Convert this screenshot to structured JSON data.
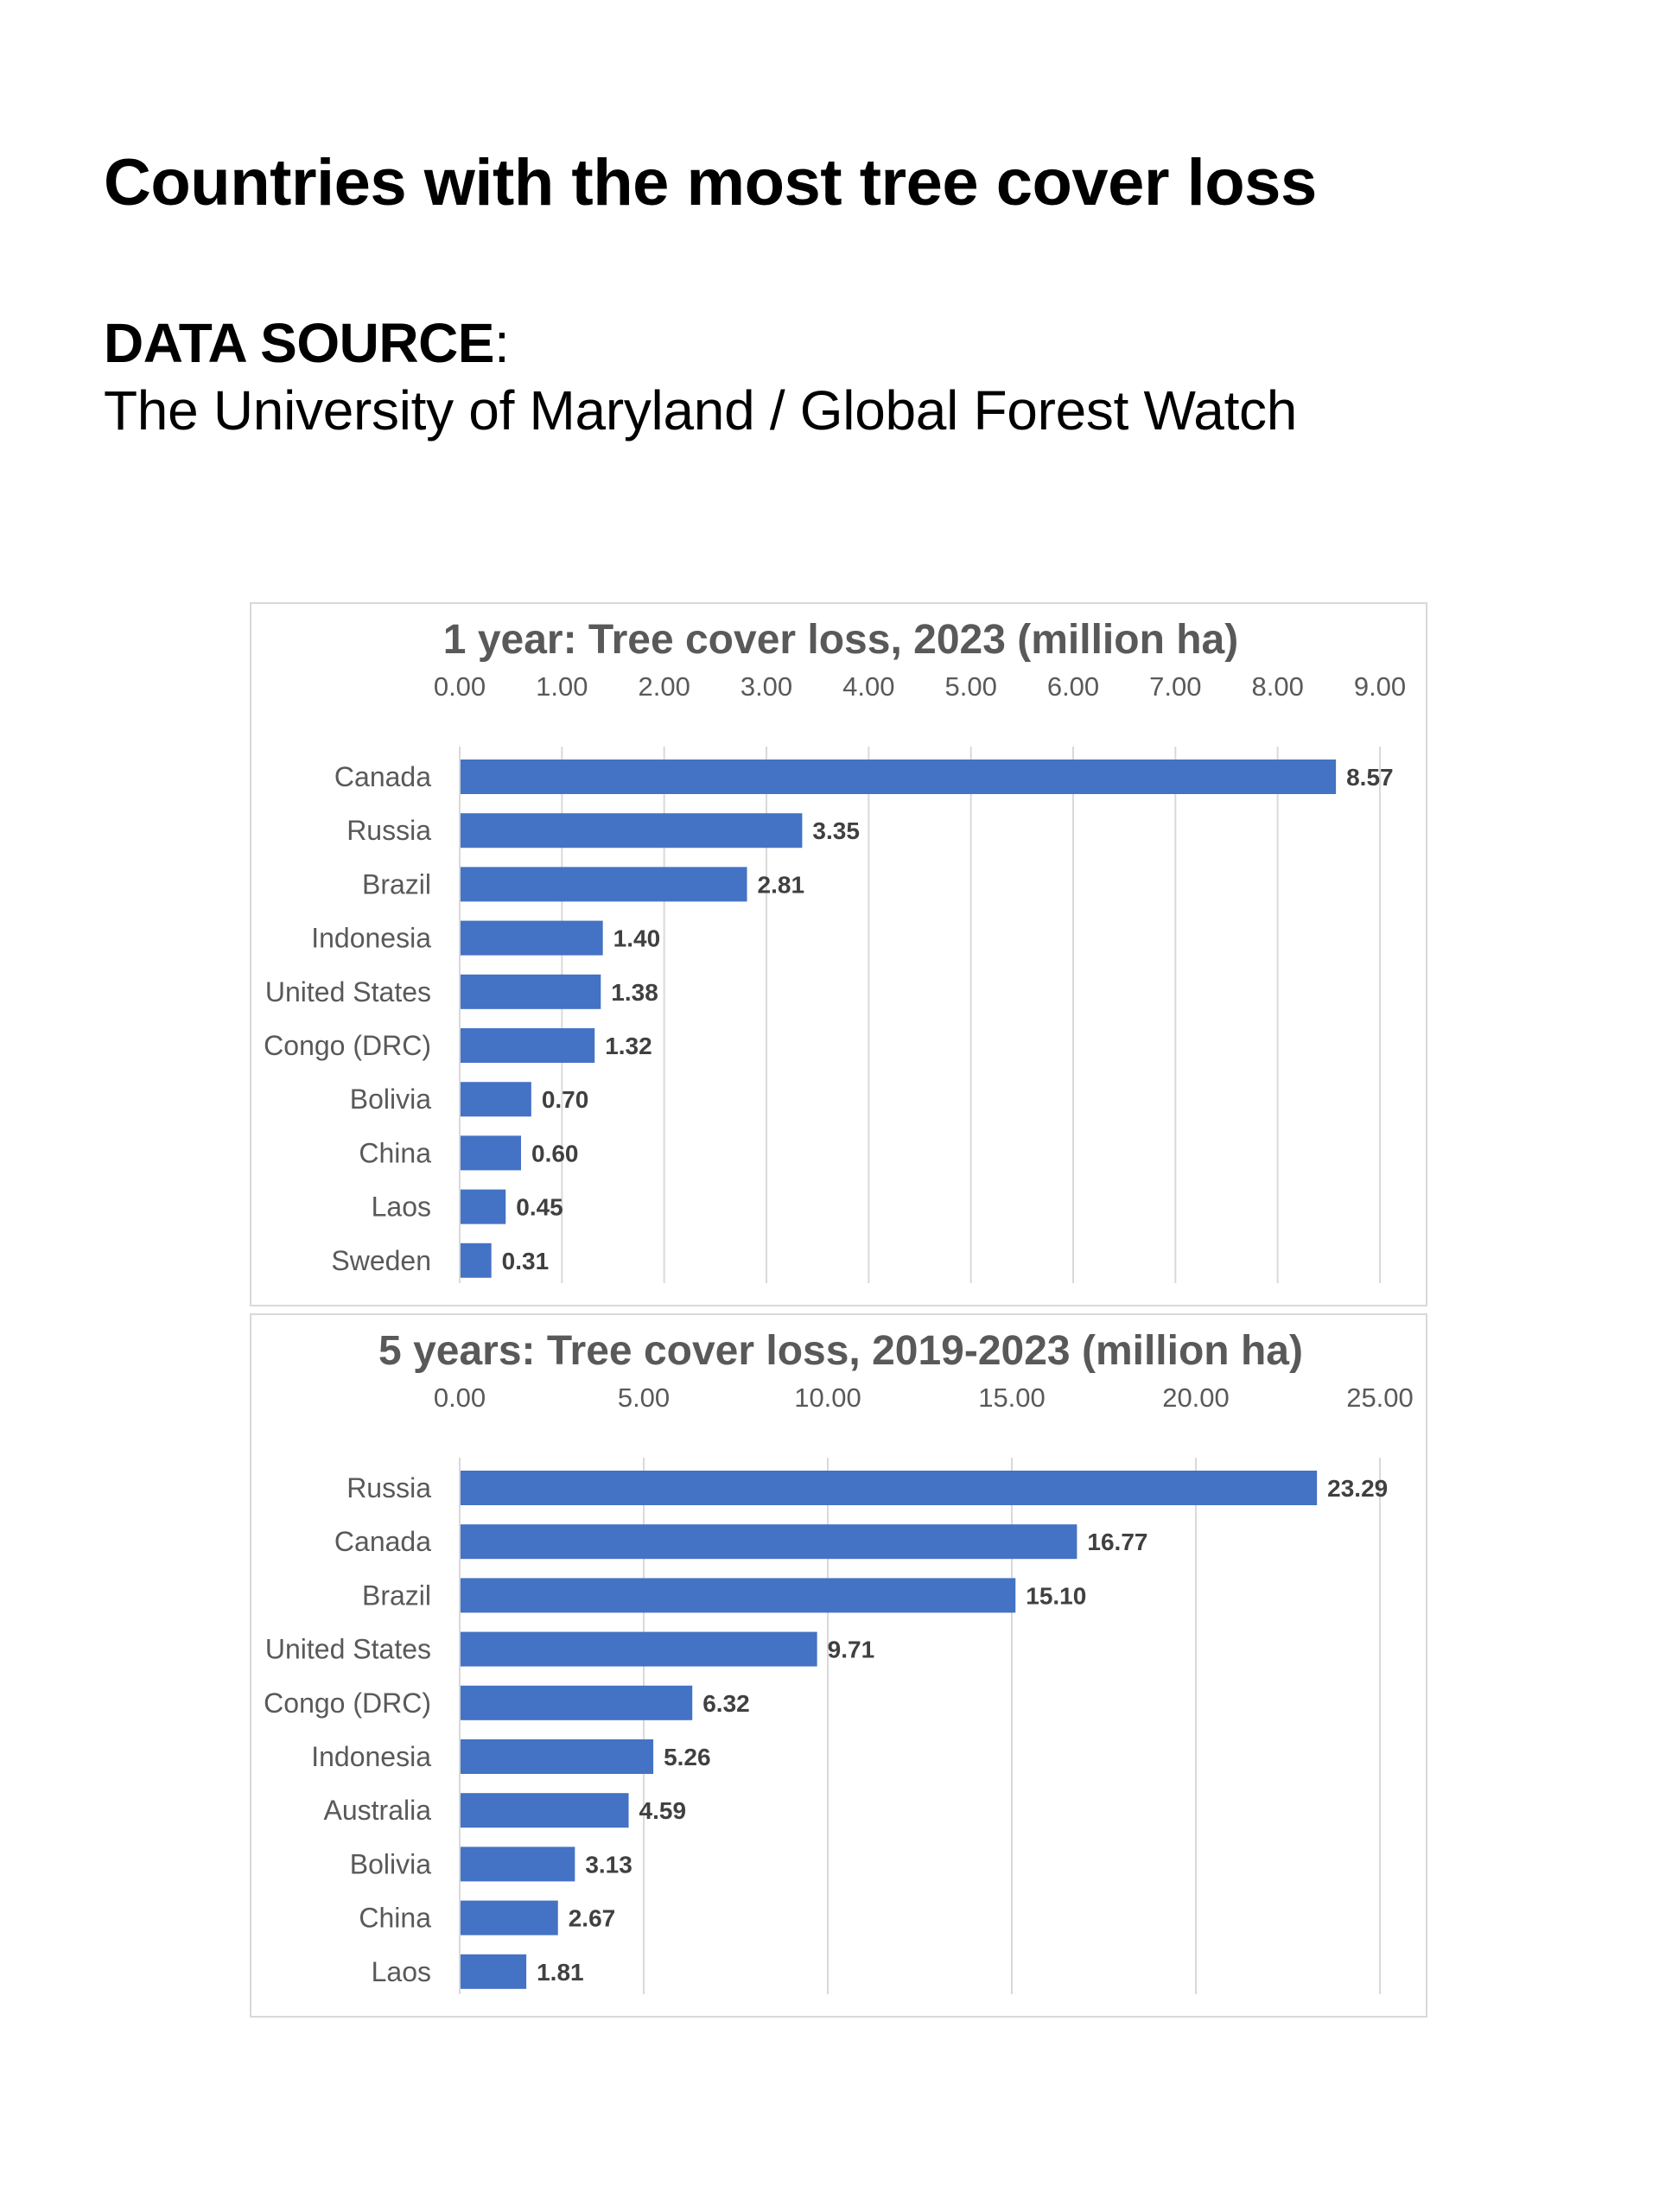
{
  "page": {
    "title": "Countries with the most tree cover loss",
    "source_label": "DATA SOURCE",
    "source_colon": ":",
    "source_text": "The University of Maryland / Global Forest Watch"
  },
  "colors": {
    "bar": "#4472c4",
    "gridline": "#d9d9d9",
    "axis_text": "#595959",
    "value_label": "#404040"
  },
  "chart_data": [
    {
      "type": "bar",
      "orientation": "horizontal",
      "title": "1 year: Tree cover loss, 2023 (million ha)",
      "xlabel": "",
      "ylabel": "",
      "xlim": [
        0,
        9
      ],
      "x_ticks": [
        0,
        1,
        2,
        3,
        4,
        5,
        6,
        7,
        8,
        9
      ],
      "x_tick_labels": [
        "0.00",
        "1.00",
        "2.00",
        "3.00",
        "4.00",
        "5.00",
        "6.00",
        "7.00",
        "8.00",
        "9.00"
      ],
      "axis_position": "top",
      "grid": true,
      "legend": "none",
      "categories": [
        "Canada",
        "Russia",
        "Brazil",
        "Indonesia",
        "United States",
        "Congo (DRC)",
        "Bolivia",
        "China",
        "Laos",
        "Sweden"
      ],
      "values": [
        8.57,
        3.35,
        2.81,
        1.4,
        1.38,
        1.32,
        0.7,
        0.6,
        0.45,
        0.31
      ],
      "value_labels": [
        "8.57",
        "3.35",
        "2.81",
        "1.40",
        "1.38",
        "1.32",
        "0.70",
        "0.60",
        "0.45",
        "0.31"
      ]
    },
    {
      "type": "bar",
      "orientation": "horizontal",
      "title": "5 years: Tree cover loss, 2019-2023 (million ha)",
      "xlabel": "",
      "ylabel": "",
      "xlim": [
        0,
        25
      ],
      "x_ticks": [
        0,
        5,
        10,
        15,
        20,
        25
      ],
      "x_tick_labels": [
        "0.00",
        "5.00",
        "10.00",
        "15.00",
        "20.00",
        "25.00"
      ],
      "axis_position": "top",
      "grid": true,
      "legend": "none",
      "categories": [
        "Russia",
        "Canada",
        "Brazil",
        "United States",
        "Congo (DRC)",
        "Indonesia",
        "Australia",
        "Bolivia",
        "China",
        "Laos"
      ],
      "values": [
        23.29,
        16.77,
        15.1,
        9.71,
        6.32,
        5.26,
        4.59,
        3.13,
        2.67,
        1.81
      ],
      "value_labels": [
        "23.29",
        "16.77",
        "15.10",
        "9.71",
        "6.32",
        "5.26",
        "4.59",
        "3.13",
        "2.67",
        "1.81"
      ]
    }
  ]
}
